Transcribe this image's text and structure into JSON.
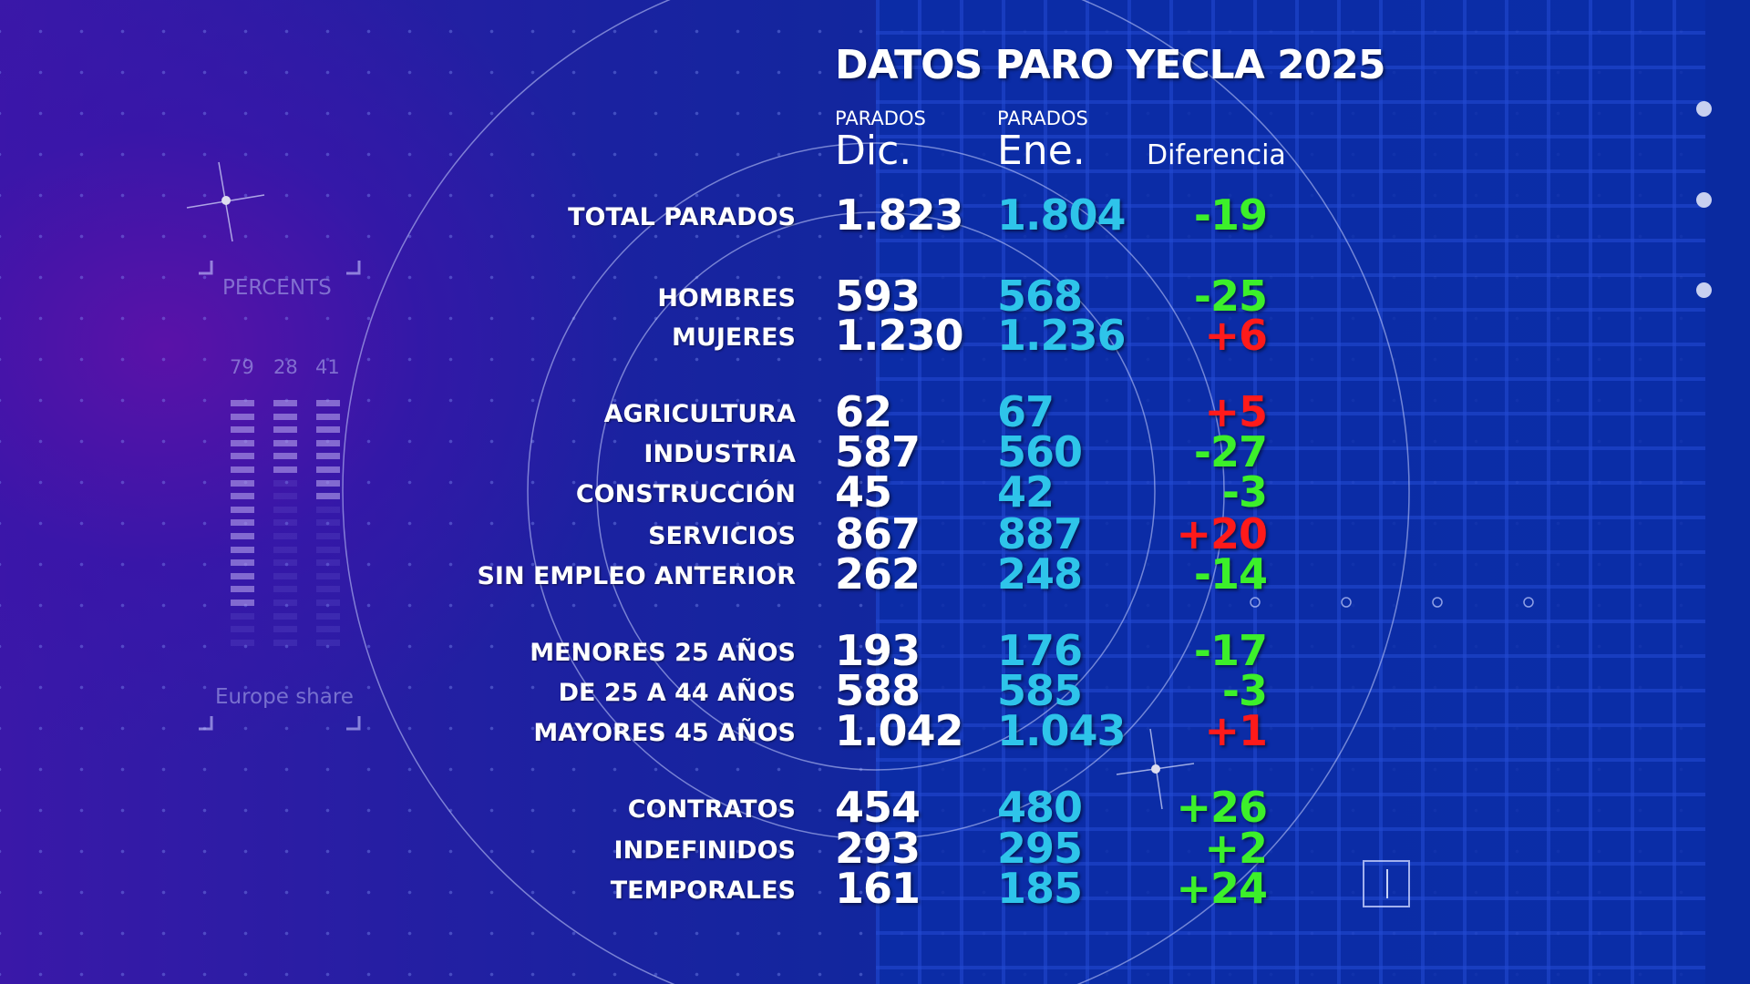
{
  "title": "DATOS PARO YECLA 2025",
  "headers": {
    "dic_small": "PARADOS",
    "dic_big": "Dic.",
    "ene_small": "PARADOS",
    "ene_big": "Ene.",
    "diff": "Diferencia"
  },
  "rows": [
    {
      "label": "TOTAL PARADOS",
      "dic": "1.823",
      "ene": "1.804",
      "diff": "-19",
      "sign": "neg"
    },
    {
      "label": "HOMBRES",
      "dic": "593",
      "ene": "568",
      "diff": "-25",
      "sign": "neg"
    },
    {
      "label": "MUJERES",
      "dic": "1.230",
      "ene": "1.236",
      "diff": "+6",
      "sign": "pos"
    },
    {
      "label": "AGRICULTURA",
      "dic": "62",
      "ene": "67",
      "diff": "+5",
      "sign": "pos"
    },
    {
      "label": "INDUSTRIA",
      "dic": "587",
      "ene": "560",
      "diff": "-27",
      "sign": "neg"
    },
    {
      "label": "CONSTRUCCIÓN",
      "dic": "45",
      "ene": "42",
      "diff": "-3",
      "sign": "neg"
    },
    {
      "label": "SERVICIOS",
      "dic": "867",
      "ene": "887",
      "diff": "+20",
      "sign": "pos"
    },
    {
      "label": "SIN EMPLEO ANTERIOR",
      "dic": "262",
      "ene": "248",
      "diff": "-14",
      "sign": "neg"
    },
    {
      "label": "MENORES  25 AÑOS",
      "dic": "193",
      "ene": "176",
      "diff": "-17",
      "sign": "neg"
    },
    {
      "label": "DE 25 A 44 AÑOS",
      "dic": "588",
      "ene": "585",
      "diff": "-3",
      "sign": "neg"
    },
    {
      "label": "MAYORES  45 AÑOS",
      "dic": "1.042",
      "ene": "1.043",
      "diff": "+1",
      "sign": "pos"
    },
    {
      "label": "CONTRATOS",
      "dic": "454",
      "ene": "480",
      "diff": "+26",
      "sign": "neg"
    },
    {
      "label": "INDEFINIDOS",
      "dic": "293",
      "ene": "295",
      "diff": "+2",
      "sign": "neg"
    },
    {
      "label": "TEMPORALES",
      "dic": "161",
      "ene": "185",
      "diff": "+24",
      "sign": "neg"
    }
  ],
  "colors": {
    "positive_diff": "#3cf02a",
    "negative_diff": "#ff1a1a",
    "ene": "#2ec4ea"
  },
  "widget": {
    "title": "PERCENTS",
    "footer": "Europe share",
    "values": [
      "79",
      "28",
      "41"
    ],
    "lit_bars": [
      16,
      6,
      8
    ]
  }
}
